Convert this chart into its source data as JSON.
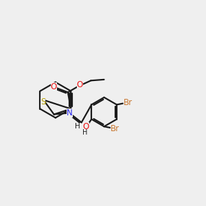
{
  "bg_color": "#efefef",
  "bond_color": "#1a1a1a",
  "atom_colors": {
    "S": "#b8a000",
    "O": "#ee1111",
    "N": "#2222ee",
    "Br": "#c87832",
    "H": "#1a1a1a",
    "C": "#1a1a1a"
  },
  "lw": 1.6,
  "fs": 8.5
}
